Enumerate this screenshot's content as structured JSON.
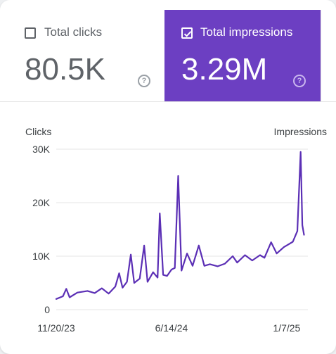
{
  "metrics": {
    "clicks": {
      "label": "Total clicks",
      "value": "80.5K",
      "checked": false
    },
    "impressions": {
      "label": "Total impressions",
      "value": "3.29M",
      "checked": true
    },
    "help_glyph": "?"
  },
  "colors": {
    "impressions_accent": "#6c3fc2",
    "line": "#5b2fb5",
    "grid": "#e6e6e6",
    "text": "#5f6368"
  },
  "chart_data": {
    "type": "line",
    "title": "",
    "left_axis_title": "Clicks",
    "right_axis_title": "Impressions",
    "y_ticks": [
      {
        "value": 0,
        "label": "0"
      },
      {
        "value": 10000,
        "label": "10K"
      },
      {
        "value": 20000,
        "label": "20K"
      },
      {
        "value": 30000,
        "label": "30K"
      }
    ],
    "ylim": [
      0,
      30000
    ],
    "x_tick_labels": [
      "11/20/23",
      "6/14/24",
      "1/7/25"
    ],
    "x_ticks": [
      "2023-11-20",
      "2024-06-14",
      "2025-01-07"
    ],
    "xlim": [
      "2023-11-20",
      "2025-02-14"
    ],
    "grid": true,
    "series": [
      {
        "values": [
          [
            "2023-11-20",
            2000
          ],
          [
            "2023-12-02",
            2500
          ],
          [
            "2023-12-08",
            3900
          ],
          [
            "2023-12-14",
            2300
          ],
          [
            "2023-12-28",
            3200
          ],
          [
            "2024-01-15",
            3500
          ],
          [
            "2024-01-28",
            3100
          ],
          [
            "2024-02-10",
            4000
          ],
          [
            "2024-02-22",
            3000
          ],
          [
            "2024-03-05",
            4300
          ],
          [
            "2024-03-12",
            6800
          ],
          [
            "2024-03-18",
            4100
          ],
          [
            "2024-03-26",
            5200
          ],
          [
            "2024-04-02",
            10300
          ],
          [
            "2024-04-08",
            5000
          ],
          [
            "2024-04-18",
            5800
          ],
          [
            "2024-04-26",
            12000
          ],
          [
            "2024-05-02",
            5200
          ],
          [
            "2024-05-12",
            7000
          ],
          [
            "2024-05-20",
            6000
          ],
          [
            "2024-05-24",
            18000
          ],
          [
            "2024-05-30",
            6500
          ],
          [
            "2024-06-06",
            6300
          ],
          [
            "2024-06-14",
            7500
          ],
          [
            "2024-06-20",
            7800
          ],
          [
            "2024-06-26",
            25000
          ],
          [
            "2024-07-02",
            7300
          ],
          [
            "2024-07-12",
            10500
          ],
          [
            "2024-07-22",
            8200
          ],
          [
            "2024-08-02",
            12000
          ],
          [
            "2024-08-12",
            8200
          ],
          [
            "2024-08-22",
            8500
          ],
          [
            "2024-09-05",
            8100
          ],
          [
            "2024-09-18",
            8600
          ],
          [
            "2024-10-02",
            10000
          ],
          [
            "2024-10-10",
            8800
          ],
          [
            "2024-10-24",
            10200
          ],
          [
            "2024-11-06",
            9200
          ],
          [
            "2024-11-20",
            10200
          ],
          [
            "2024-11-28",
            9700
          ],
          [
            "2024-12-10",
            12600
          ],
          [
            "2024-12-20",
            10500
          ],
          [
            "2025-01-02",
            11700
          ],
          [
            "2025-01-10",
            12200
          ],
          [
            "2025-01-18",
            12700
          ],
          [
            "2025-01-26",
            14700
          ],
          [
            "2025-02-01",
            29500
          ],
          [
            "2025-02-04",
            15800
          ],
          [
            "2025-02-07",
            14000
          ]
        ]
      }
    ]
  }
}
